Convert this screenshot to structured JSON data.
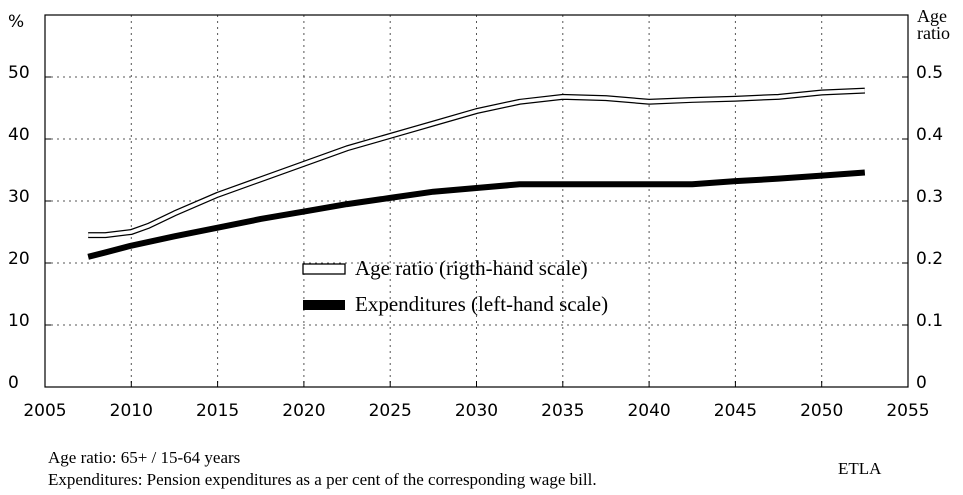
{
  "chart_data": {
    "type": "line",
    "ylabel": "%",
    "y2label": "Age ratio",
    "x": [
      2007.5,
      2008.5,
      2010,
      2011,
      2012.5,
      2015,
      2017.5,
      2020,
      2022.5,
      2025,
      2027.5,
      2030,
      2032.5,
      2035,
      2037.5,
      2040,
      2042.5,
      2045,
      2047.5,
      2050,
      2052.5
    ],
    "series": [
      {
        "name": "Age ratio (rigth-hand scale)",
        "color": "#000000",
        "fill": "#ffffff",
        "axis": "y2",
        "values": [
          0.245,
          0.245,
          0.25,
          0.26,
          0.28,
          0.31,
          0.335,
          0.36,
          0.385,
          0.405,
          0.425,
          0.445,
          0.46,
          0.468,
          0.466,
          0.46,
          0.463,
          0.465,
          0.468,
          0.475,
          0.478
        ]
      },
      {
        "name": "Expenditures (left-hand scale)",
        "color": "#000000",
        "values": [
          21,
          21.7,
          22.8,
          23.4,
          24.3,
          25.7,
          27.1,
          28.3,
          29.5,
          30.5,
          31.5,
          32.1,
          32.7,
          32.7,
          32.7,
          32.7,
          32.7,
          33.2,
          33.6,
          34.1,
          34.6
        ]
      }
    ],
    "xlim": [
      2005,
      2055
    ],
    "xticks": [
      2005,
      2010,
      2015,
      2020,
      2025,
      2030,
      2035,
      2040,
      2045,
      2050,
      2055
    ],
    "ylim": [
      0,
      60
    ],
    "yticks": [
      0,
      10,
      20,
      30,
      40,
      50
    ],
    "y2lim": [
      0,
      0.6
    ],
    "y2ticks": [
      0,
      0.1,
      0.2,
      0.3,
      0.4,
      0.5
    ],
    "grid": true,
    "legend": "center",
    "notes": [
      "Age ratio: 65+ / 15-64 years",
      "Expenditures: Pension expenditures as a per cent of the corresponding wage bill."
    ],
    "source": "ETLA"
  }
}
